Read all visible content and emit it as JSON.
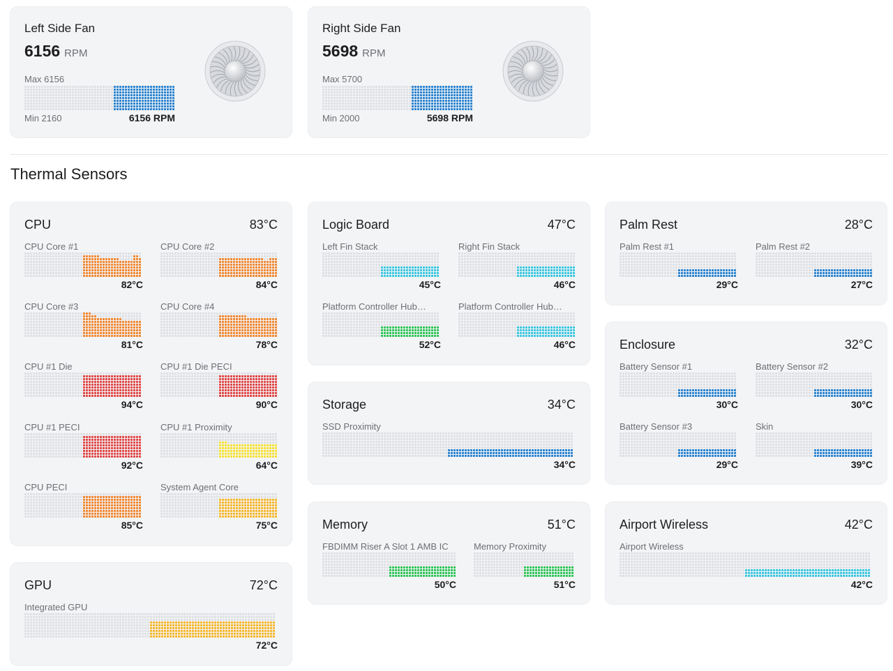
{
  "fans": [
    {
      "title": "Left Side Fan",
      "rpm": "6156",
      "unit": "RPM",
      "max_label": "Max 6156",
      "min_label": "Min 2160",
      "value_label": "6156 RPM",
      "level": 1.0
    },
    {
      "title": "Right Side Fan",
      "rpm": "5698",
      "unit": "RPM",
      "max_label": "Max 5700",
      "min_label": "Min 2000",
      "value_label": "5698 RPM",
      "level": 0.998
    }
  ],
  "section_title": "Thermal Sensors",
  "groups": {
    "cpu": {
      "title": "CPU",
      "temp": "83°C",
      "sensors": [
        {
          "label": "CPU Core #1",
          "value": "82°C",
          "history": [
            0.85,
            0.85,
            0.85,
            0.85,
            0.85,
            0.82,
            0.8,
            0.78,
            0.77,
            0.75,
            0.75,
            0.75,
            0.72,
            0.72,
            0.72,
            0.72,
            0.72,
            0.9,
            0.9,
            0.8
          ],
          "color": "#f08a36"
        },
        {
          "label": "CPU Core #2",
          "value": "84°C",
          "history": [
            0.82,
            0.82,
            0.82,
            0.82,
            0.82,
            0.82,
            0.82,
            0.8,
            0.8,
            0.8,
            0.8,
            0.8,
            0.75,
            0.75,
            0.75,
            0.72,
            0.72,
            0.8,
            0.8,
            0.8
          ],
          "color": "#f08a36"
        },
        {
          "label": "CPU Core #3",
          "value": "81°C",
          "history": [
            0.95,
            0.95,
            0.85,
            0.85,
            0.8,
            0.8,
            0.8,
            0.78,
            0.78,
            0.78,
            0.75,
            0.75,
            0.75,
            0.72,
            0.72,
            0.72,
            0.72,
            0.72,
            0.7,
            0.7
          ],
          "color": "#f08a36"
        },
        {
          "label": "CPU Core #4",
          "value": "78°C",
          "history": [
            0.9,
            0.9,
            0.9,
            0.88,
            0.86,
            0.86,
            0.86,
            0.84,
            0.84,
            0.82,
            0.82,
            0.82,
            0.8,
            0.8,
            0.78,
            0.78,
            0.78,
            0.76,
            0.76,
            0.78
          ],
          "color": "#f08a36"
        },
        {
          "label": "CPU #1 Die",
          "value": "94°C",
          "history": [
            0.92,
            0.92,
            0.92,
            0.92,
            0.92,
            0.92,
            0.92,
            0.92,
            0.92,
            0.92,
            0.92,
            0.92,
            0.92,
            0.92,
            0.92,
            0.92,
            0.92,
            0.92,
            0.92,
            0.92
          ],
          "color": "#e04a4a"
        },
        {
          "label": "CPU #1 Die PECI",
          "value": "90°C",
          "history": [
            0.92,
            0.92,
            0.92,
            0.92,
            0.92,
            0.92,
            0.92,
            0.92,
            0.92,
            0.92,
            0.92,
            0.92,
            0.88,
            0.88,
            0.88,
            0.88,
            0.85,
            0.85,
            0.85,
            0.85
          ],
          "color": "#e04a4a"
        },
        {
          "label": "CPU #1 PECI",
          "value": "92°C",
          "history": [
            0.92,
            0.92,
            0.92,
            0.92,
            0.92,
            0.92,
            0.92,
            0.92,
            0.92,
            0.92,
            0.92,
            0.92,
            0.9,
            0.9,
            0.88,
            0.88,
            0.88,
            0.88,
            0.88,
            0.88
          ],
          "color": "#e04a4a"
        },
        {
          "label": "CPU #1 Proximity",
          "value": "64°C",
          "history": [
            0.62,
            0.62,
            0.6,
            0.6,
            0.58,
            0.58,
            0.58,
            0.56,
            0.56,
            0.54,
            0.54,
            0.54,
            0.52,
            0.52,
            0.52,
            0.52,
            0.52,
            0.5,
            0.5,
            0.5
          ],
          "color": "#f5e23a"
        },
        {
          "label": "CPU PECI",
          "value": "85°C",
          "history": [
            0.92,
            0.92,
            0.92,
            0.92,
            0.9,
            0.9,
            0.9,
            0.9,
            0.9,
            0.9,
            0.9,
            0.88,
            0.88,
            0.88,
            0.86,
            0.86,
            0.86,
            0.86,
            0.86,
            0.86
          ],
          "color": "#f08a36"
        },
        {
          "label": "System Agent Core",
          "value": "75°C",
          "history": [
            0.8,
            0.8,
            0.8,
            0.8,
            0.8,
            0.8,
            0.8,
            0.8,
            0.8,
            0.8,
            0.8,
            0.8,
            0.8,
            0.8,
            0.8,
            0.8,
            0.8,
            0.8,
            0.8,
            0.8
          ],
          "color": "#f5b830"
        }
      ]
    },
    "gpu": {
      "title": "GPU",
      "temp": "72°C",
      "sensors": [
        {
          "label": "Integrated GPU",
          "value": "72°C",
          "history": [
            0.7,
            0.7,
            0.7,
            0.7,
            0.7,
            0.7,
            0.7,
            0.7,
            0.7,
            0.7,
            0.7,
            0.7,
            0.7,
            0.7,
            0.7,
            0.7,
            0.7,
            0.7,
            0.7,
            0.7,
            0.68,
            0.68,
            0.68,
            0.68,
            0.68,
            0.68,
            0.68,
            0.68,
            0.68,
            0.68,
            0.68,
            0.68,
            0.68,
            0.68,
            0.68,
            0.68,
            0.68,
            0.68,
            0.68,
            0.68,
            0.68,
            0.68,
            0.68,
            0.68,
            0.68,
            0.68,
            0.68,
            0.68,
            0.68,
            0.68,
            0.68,
            0.68,
            0.68,
            0.68,
            0.7,
            0.7,
            0.7,
            0.7,
            0.7,
            0.7,
            0.7,
            0.7,
            0.7,
            0.7,
            0.7,
            0.7,
            0.7,
            0.7,
            0.7,
            0.7,
            0.7,
            0.7,
            0.7,
            0.7,
            0.7,
            0.7,
            0.7,
            0.7,
            0.7,
            0.7
          ],
          "color": "#f5b830"
        }
      ]
    },
    "logic_board": {
      "title": "Logic Board",
      "temp": "47°C",
      "sensors": [
        {
          "label": "Left Fin Stack",
          "value": "45°C",
          "history": [
            0.45
          ],
          "color": "#3fc7e0"
        },
        {
          "label": "Right Fin Stack",
          "value": "46°C",
          "history": [
            0.46
          ],
          "color": "#3fc7e0"
        },
        {
          "label": "Platform Controller Hub…",
          "value": "52°C",
          "history": [
            0.48
          ],
          "color": "#34c55a"
        },
        {
          "label": "Platform Controller Hub…",
          "value": "46°C",
          "history": [
            0.46
          ],
          "color": "#3fc7e0"
        }
      ]
    },
    "storage": {
      "title": "Storage",
      "temp": "34°C",
      "sensors": [
        {
          "label": "SSD Proximity",
          "value": "34°C",
          "history": [
            0.3
          ],
          "color": "#2f86d0"
        }
      ]
    },
    "memory": {
      "title": "Memory",
      "temp": "51°C",
      "sensors": [
        {
          "label": "FBDIMM Riser A Slot 1 AMB IC",
          "value": "50°C",
          "history": [
            0.48
          ],
          "color": "#34c55a"
        },
        {
          "label": "Memory Proximity",
          "value": "51°C",
          "history": [
            0.48
          ],
          "color": "#34c55a"
        }
      ]
    },
    "palm_rest": {
      "title": "Palm Rest",
      "temp": "28°C",
      "sensors": [
        {
          "label": "Palm Rest #1",
          "value": "29°C",
          "history": [
            0.3
          ],
          "color": "#2f86d0"
        },
        {
          "label": "Palm Rest #2",
          "value": "27°C",
          "history": [
            0.3
          ],
          "color": "#2f86d0"
        }
      ]
    },
    "enclosure": {
      "title": "Enclosure",
      "temp": "32°C",
      "sensors": [
        {
          "label": "Battery Sensor #1",
          "value": "30°C",
          "history": [
            0.3
          ],
          "color": "#2f86d0"
        },
        {
          "label": "Battery Sensor #2",
          "value": "30°C",
          "history": [
            0.3
          ],
          "color": "#2f86d0"
        },
        {
          "label": "Battery Sensor #3",
          "value": "29°C",
          "history": [
            0.3
          ],
          "color": "#2f86d0"
        },
        {
          "label": "Skin",
          "value": "39°C",
          "history": [
            0.38
          ],
          "color": "#2f86d0"
        }
      ]
    },
    "airport": {
      "title": "Airport Wireless",
      "temp": "42°C",
      "sensors": [
        {
          "label": "Airport Wireless",
          "value": "42°C",
          "history": [
            0.38
          ],
          "color": "#3fc7e0"
        }
      ]
    }
  },
  "colors": {
    "card_bg": "#f3f4f6",
    "empty_cell": "#dfe1e5",
    "fan_fill": "#2f86d0"
  }
}
